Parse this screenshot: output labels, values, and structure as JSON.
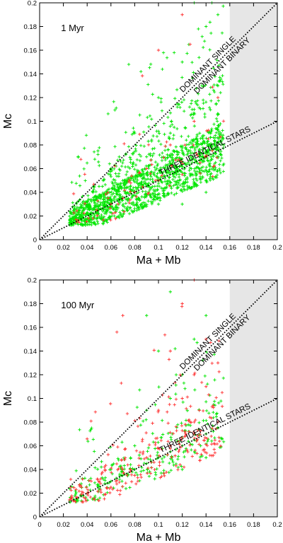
{
  "chart_data": [
    {
      "type": "scatter",
      "panel_label": "1 Myr",
      "xlabel": "Ma + Mb",
      "ylabel": "Mc",
      "xlim": [
        0,
        0.2
      ],
      "ylim": [
        0,
        0.2
      ],
      "xticks": [
        "0",
        "0.02",
        "0.04",
        "0.06",
        "0.08",
        "0.1",
        "0.12",
        "0.14",
        "0.16",
        "0.18",
        "0.2"
      ],
      "yticks": [
        "0",
        "0.02",
        "0.04",
        "0.06",
        "0.08",
        "0.1",
        "0.12",
        "0.14",
        "0.16",
        "0.18",
        "0.2"
      ],
      "shaded_region": {
        "x_from": 0.16,
        "x_to": 0.2,
        "color": "#e6e6e6"
      },
      "lines": [
        {
          "label": "DOMINANT SINGLE",
          "equation": "Mc = Ma + Mb",
          "x": [
            0,
            0.2
          ],
          "y": [
            0,
            0.2
          ]
        },
        {
          "label": "DOMINANT BINARY",
          "equation": "Mc = Ma + Mb",
          "x": [
            0,
            0.2
          ],
          "y": [
            0,
            0.2
          ]
        },
        {
          "label": "THREE IDENTICAL STARS",
          "equation": "Mc = (Ma + Mb) / 2",
          "x": [
            0,
            0.2
          ],
          "y": [
            0,
            0.1
          ]
        }
      ],
      "series": [
        {
          "color": "#00e600",
          "marker": "+",
          "density": "high",
          "points": [
            [
              0.025,
              0.014
            ],
            [
              0.03,
              0.018
            ],
            [
              0.035,
              0.02
            ],
            [
              0.04,
              0.022
            ],
            [
              0.045,
              0.025
            ],
            [
              0.05,
              0.026
            ],
            [
              0.055,
              0.029
            ],
            [
              0.06,
              0.031
            ],
            [
              0.065,
              0.034
            ],
            [
              0.07,
              0.036
            ],
            [
              0.075,
              0.039
            ],
            [
              0.08,
              0.041
            ],
            [
              0.085,
              0.044
            ],
            [
              0.09,
              0.046
            ],
            [
              0.095,
              0.049
            ],
            [
              0.1,
              0.052
            ],
            [
              0.105,
              0.054
            ],
            [
              0.11,
              0.057
            ],
            [
              0.115,
              0.06
            ],
            [
              0.12,
              0.062
            ],
            [
              0.125,
              0.065
            ],
            [
              0.13,
              0.068
            ],
            [
              0.135,
              0.07
            ],
            [
              0.14,
              0.073
            ],
            [
              0.145,
              0.076
            ],
            [
              0.15,
              0.078
            ],
            [
              0.155,
              0.08
            ],
            [
              0.07,
              0.05
            ],
            [
              0.09,
              0.07
            ],
            [
              0.11,
              0.09
            ],
            [
              0.13,
              0.11
            ],
            [
              0.15,
              0.13
            ],
            [
              0.12,
              0.15
            ],
            [
              0.14,
              0.18
            ],
            [
              0.15,
              0.19
            ],
            [
              0.1,
              0.12
            ],
            [
              0.08,
              0.09
            ],
            [
              0.06,
              0.06
            ],
            [
              0.045,
              0.04
            ],
            [
              0.05,
              0.045
            ],
            [
              0.1,
              0.03
            ],
            [
              0.12,
              0.03
            ],
            [
              0.14,
              0.04
            ],
            [
              0.13,
              0.045
            ],
            [
              0.075,
              0.148
            ],
            [
              0.13,
              0.2
            ],
            [
              0.145,
              0.2
            ]
          ]
        },
        {
          "color": "#ff3333",
          "marker": "+",
          "density": "low",
          "points": [
            [
              0.045,
              0.018
            ],
            [
              0.06,
              0.03
            ],
            [
              0.08,
              0.04
            ],
            [
              0.1,
              0.05
            ],
            [
              0.12,
              0.055
            ],
            [
              0.14,
              0.07
            ],
            [
              0.11,
              0.08
            ],
            [
              0.13,
              0.1
            ],
            [
              0.15,
              0.12
            ],
            [
              0.12,
              0.19
            ],
            [
              0.1,
              0.16
            ],
            [
              0.09,
              0.06
            ],
            [
              0.07,
              0.035
            ],
            [
              0.135,
              0.065
            ]
          ]
        }
      ]
    },
    {
      "type": "scatter",
      "panel_label": "100 Myr",
      "xlabel": "Ma + Mb",
      "ylabel": "Mc",
      "xlim": [
        0,
        0.2
      ],
      "ylim": [
        0,
        0.2
      ],
      "xticks": [
        "0",
        "0.02",
        "0.04",
        "0.06",
        "0.08",
        "0.1",
        "0.12",
        "0.14",
        "0.16",
        "0.18",
        "0.2"
      ],
      "yticks": [
        "0",
        "0.02",
        "0.04",
        "0.06",
        "0.08",
        "0.1",
        "0.12",
        "0.14",
        "0.16",
        "0.18",
        "0.2"
      ],
      "shaded_region": {
        "x_from": 0.16,
        "x_to": 0.2,
        "color": "#e6e6e6"
      },
      "lines": [
        {
          "label": "DOMINANT SINGLE",
          "equation": "Mc = Ma + Mb",
          "x": [
            0,
            0.2
          ],
          "y": [
            0,
            0.2
          ]
        },
        {
          "label": "DOMINANT BINARY",
          "equation": "Mc = Ma + Mb",
          "x": [
            0,
            0.2
          ],
          "y": [
            0,
            0.2
          ]
        },
        {
          "label": "THREE IDENTICAL STARS",
          "equation": "Mc = (Ma + Mb) / 2",
          "x": [
            0,
            0.2
          ],
          "y": [
            0,
            0.1
          ]
        }
      ],
      "series": [
        {
          "color": "#00e600",
          "marker": "+",
          "density": "medium",
          "points": [
            [
              0.035,
              0.018
            ],
            [
              0.04,
              0.02
            ],
            [
              0.05,
              0.026
            ],
            [
              0.06,
              0.03
            ],
            [
              0.07,
              0.035
            ],
            [
              0.08,
              0.04
            ],
            [
              0.09,
              0.045
            ],
            [
              0.1,
              0.05
            ],
            [
              0.11,
              0.055
            ],
            [
              0.12,
              0.06
            ],
            [
              0.13,
              0.065
            ],
            [
              0.14,
              0.07
            ],
            [
              0.15,
              0.075
            ],
            [
              0.09,
              0.09
            ],
            [
              0.11,
              0.1
            ],
            [
              0.12,
              0.12
            ],
            [
              0.13,
              0.15
            ],
            [
              0.14,
              0.17
            ],
            [
              0.1,
              0.14
            ],
            [
              0.08,
              0.06
            ],
            [
              0.06,
              0.04
            ],
            [
              0.12,
              0.04
            ],
            [
              0.14,
              0.05
            ],
            [
              0.09,
              0.17
            ],
            [
              0.11,
              0.19
            ]
          ]
        },
        {
          "color": "#ff3333",
          "marker": "+",
          "density": "medium",
          "points": [
            [
              0.04,
              0.02
            ],
            [
              0.05,
              0.03
            ],
            [
              0.07,
              0.04
            ],
            [
              0.09,
              0.05
            ],
            [
              0.11,
              0.06
            ],
            [
              0.13,
              0.07
            ],
            [
              0.15,
              0.08
            ],
            [
              0.12,
              0.1
            ],
            [
              0.13,
              0.12
            ],
            [
              0.14,
              0.15
            ],
            [
              0.12,
              0.18
            ],
            [
              0.13,
              0.2
            ],
            [
              0.07,
              0.17
            ],
            [
              0.065,
              0.156
            ],
            [
              0.1,
              0.09
            ],
            [
              0.14,
              0.11
            ],
            [
              0.15,
              0.13
            ],
            [
              0.08,
              0.035
            ],
            [
              0.06,
              0.025
            ],
            [
              0.11,
              0.14
            ]
          ]
        }
      ]
    }
  ]
}
